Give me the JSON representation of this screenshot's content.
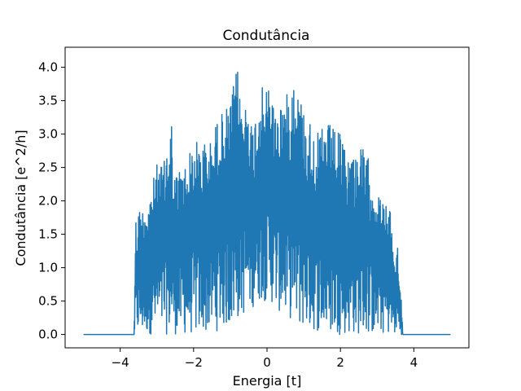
{
  "chart_data": {
    "type": "line",
    "title": "Condutância",
    "xlabel": "Energia [t]",
    "ylabel": "Condutância [e^2/h]",
    "xlim": [
      -5.5,
      5.5
    ],
    "ylim": [
      -0.2,
      4.3
    ],
    "xticks": [
      -4,
      -2,
      0,
      2,
      4
    ],
    "xtick_labels": [
      "−4",
      "−2",
      "0",
      "2",
      "4"
    ],
    "yticks": [
      0.0,
      0.5,
      1.0,
      1.5,
      2.0,
      2.5,
      3.0,
      3.5,
      4.0
    ],
    "ytick_labels": [
      "0.0",
      "0.5",
      "1.0",
      "1.5",
      "2.0",
      "2.5",
      "3.0",
      "3.5",
      "4.0"
    ],
    "grid": false,
    "series": [
      {
        "color": "#1f77b4",
        "envelope": {
          "x": [
            -5.0,
            -3.62,
            -3.58,
            -3.55,
            -3.5,
            -3.4,
            -3.2,
            -3.0,
            -2.8,
            -2.6,
            -2.58,
            -2.5,
            -2.4,
            -2.2,
            -2.0,
            -1.8,
            -1.5,
            -1.3,
            -1.2,
            -1.0,
            -0.8,
            -0.75,
            -0.6,
            -0.5,
            -0.4,
            -0.3,
            -0.2,
            0.0,
            0.15,
            0.2,
            0.3,
            0.4,
            0.6,
            0.7,
            0.75,
            0.9,
            1.0,
            1.2,
            1.4,
            1.6,
            1.8,
            2.0,
            2.2,
            2.4,
            2.6,
            2.8,
            3.0,
            3.2,
            3.35,
            3.4,
            3.5,
            3.55,
            3.62,
            3.65,
            3.7,
            3.72,
            5.0
          ],
          "upper": [
            0.0,
            0.0,
            1.85,
            1.6,
            1.9,
            1.9,
            2.1,
            2.55,
            2.6,
            3.4,
            2.5,
            2.4,
            2.5,
            2.6,
            2.9,
            2.9,
            2.9,
            3.4,
            3.3,
            3.5,
            4.03,
            3.6,
            3.5,
            3.6,
            3.1,
            3.4,
            3.7,
            3.7,
            3.8,
            3.3,
            3.4,
            3.6,
            3.6,
            4.08,
            3.8,
            3.6,
            3.4,
            3.2,
            3.0,
            3.2,
            3.1,
            3.0,
            2.7,
            2.8,
            2.8,
            2.6,
            2.1,
            2.0,
            1.85,
            1.7,
            1.0,
            1.55,
            0.65,
            0.65,
            0.0,
            0.0,
            0.0
          ],
          "lower": [
            0.0,
            0.0,
            0.0,
            0.0,
            0.0,
            0.0,
            0.0,
            0.0,
            0.0,
            0.0,
            0.0,
            0.0,
            0.0,
            0.0,
            0.0,
            0.0,
            0.05,
            0.05,
            0.1,
            0.1,
            0.2,
            0.25,
            0.3,
            0.35,
            0.4,
            0.45,
            0.5,
            0.5,
            0.45,
            0.4,
            0.35,
            0.3,
            0.25,
            0.2,
            0.15,
            0.1,
            0.1,
            0.05,
            0.05,
            0.0,
            0.0,
            0.0,
            0.0,
            0.0,
            0.0,
            0.0,
            0.0,
            0.0,
            0.0,
            0.0,
            0.0,
            0.0,
            0.0,
            0.0,
            0.0,
            0.0,
            0.0
          ]
        }
      }
    ]
  }
}
